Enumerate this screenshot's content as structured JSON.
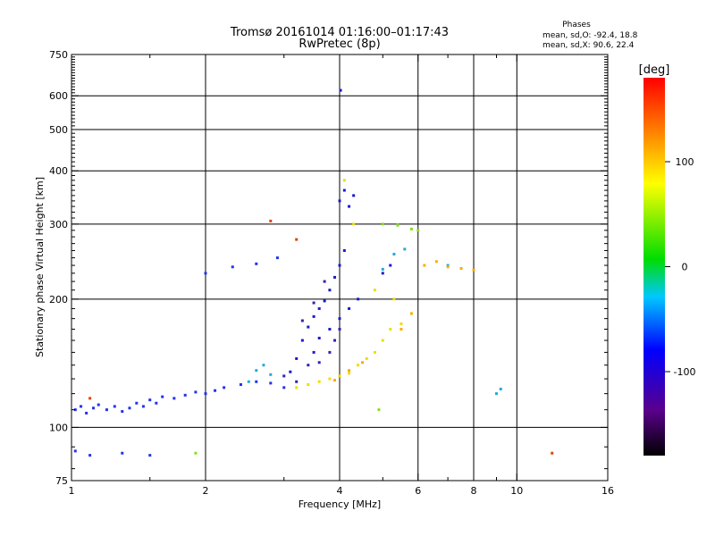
{
  "chart_data": {
    "type": "scatter",
    "title": "Tromsø 20161014 01:16:00–01:17:43",
    "subtitle": "RwPretec (8p)",
    "xlabel": "Frequency [MHz]",
    "ylabel": "Stationary phase Virtual Height [km]",
    "xscale": "log",
    "yscale": "log",
    "xlim": [
      1,
      16
    ],
    "ylim": [
      75,
      750
    ],
    "x_major_ticks": [
      {
        "v": 1,
        "label": "1"
      },
      {
        "v": 2,
        "label": "2"
      },
      {
        "v": 4,
        "label": "4"
      },
      {
        "v": 6,
        "label": "6"
      },
      {
        "v": 8,
        "label": "8"
      },
      {
        "v": 10,
        "label": "10"
      },
      {
        "v": 16,
        "label": "16"
      }
    ],
    "x_minor_ticks": [
      1.5,
      3,
      5,
      7,
      9
    ],
    "y_major_ticks": [
      {
        "v": 75,
        "label": "75"
      },
      {
        "v": 100,
        "label": "100"
      },
      {
        "v": 200,
        "label": "200"
      },
      {
        "v": 300,
        "label": "300"
      },
      {
        "v": 400,
        "label": "400"
      },
      {
        "v": 500,
        "label": "500"
      },
      {
        "v": 600,
        "label": "600"
      },
      {
        "v": 750,
        "label": "750"
      }
    ],
    "grid_x": [
      2,
      4,
      6,
      8,
      10
    ],
    "grid_y": [
      100,
      200,
      300,
      400,
      500,
      600
    ],
    "grid": true,
    "info": {
      "heading": "Phases",
      "line1": "mean, sd,O: -92.4, 18.8",
      "line2": "mean, sd,X:  90.6, 22.4"
    },
    "colorbar": {
      "label": "[deg]",
      "range": [
        -180,
        180
      ],
      "ticks": [
        {
          "v": 100,
          "label": "100"
        },
        {
          "v": 0,
          "label": "0"
        },
        {
          "v": -100,
          "label": "-100"
        }
      ]
    },
    "series": [
      {
        "color": "#2233ee",
        "points": [
          [
            1.02,
            110
          ],
          [
            1.05,
            112
          ],
          [
            1.08,
            108
          ],
          [
            1.12,
            111
          ],
          [
            1.15,
            113
          ],
          [
            1.2,
            110
          ],
          [
            1.25,
            112
          ],
          [
            1.3,
            109
          ],
          [
            1.35,
            111
          ],
          [
            1.4,
            114
          ],
          [
            1.45,
            112
          ],
          [
            1.5,
            116
          ],
          [
            1.55,
            114
          ],
          [
            1.6,
            118
          ],
          [
            1.7,
            117
          ],
          [
            1.8,
            119
          ],
          [
            1.9,
            121
          ],
          [
            2.0,
            120
          ],
          [
            2.1,
            122
          ],
          [
            2.2,
            124
          ],
          [
            2.4,
            126
          ],
          [
            2.6,
            128
          ],
          [
            2.8,
            127
          ],
          [
            3.0,
            124
          ],
          [
            1.02,
            88
          ],
          [
            1.1,
            86
          ],
          [
            1.3,
            87
          ],
          [
            1.5,
            86
          ],
          [
            2.0,
            230
          ],
          [
            2.3,
            238
          ],
          [
            2.6,
            242
          ],
          [
            2.9,
            250
          ]
        ]
      },
      {
        "color": "#1a1acc",
        "points": [
          [
            3.1,
            135
          ],
          [
            3.2,
            145
          ],
          [
            3.3,
            160
          ],
          [
            3.4,
            172
          ],
          [
            3.5,
            182
          ],
          [
            3.6,
            190
          ],
          [
            3.7,
            198
          ],
          [
            3.8,
            210
          ],
          [
            3.9,
            225
          ],
          [
            4.0,
            240
          ],
          [
            4.1,
            260
          ],
          [
            4.0,
            340
          ],
          [
            4.1,
            360
          ],
          [
            4.2,
            330
          ],
          [
            4.3,
            350
          ],
          [
            3.5,
            150
          ],
          [
            3.6,
            162
          ],
          [
            3.8,
            170
          ],
          [
            4.0,
            180
          ],
          [
            4.2,
            190
          ],
          [
            4.4,
            200
          ],
          [
            5.0,
            230
          ],
          [
            5.2,
            240
          ],
          [
            4.02,
            618
          ]
        ]
      },
      {
        "color": "#3322aa",
        "points": [
          [
            3.0,
            132
          ],
          [
            3.2,
            128
          ],
          [
            3.4,
            140
          ],
          [
            3.6,
            142
          ],
          [
            3.8,
            150
          ],
          [
            3.9,
            160
          ],
          [
            4.0,
            170
          ],
          [
            3.3,
            178
          ],
          [
            3.5,
            196
          ],
          [
            3.7,
            220
          ]
        ]
      },
      {
        "color": "#22aadd",
        "points": [
          [
            2.5,
            128
          ],
          [
            2.6,
            136
          ],
          [
            2.7,
            140
          ],
          [
            2.8,
            133
          ],
          [
            5.0,
            235
          ],
          [
            5.3,
            255
          ],
          [
            5.6,
            262
          ],
          [
            7.0,
            240
          ],
          [
            9.0,
            120
          ],
          [
            9.2,
            123
          ]
        ]
      },
      {
        "color": "#eedd00",
        "points": [
          [
            3.2,
            124
          ],
          [
            3.4,
            126
          ],
          [
            3.6,
            128
          ],
          [
            3.8,
            130
          ],
          [
            4.0,
            132
          ],
          [
            4.2,
            134
          ],
          [
            4.4,
            140
          ],
          [
            4.6,
            145
          ],
          [
            4.8,
            150
          ],
          [
            5.0,
            160
          ],
          [
            5.2,
            170
          ],
          [
            5.5,
            175
          ],
          [
            4.1,
            380
          ],
          [
            4.3,
            300
          ],
          [
            4.8,
            210
          ],
          [
            5.3,
            200
          ]
        ]
      },
      {
        "color": "#ffaa00",
        "points": [
          [
            3.9,
            129
          ],
          [
            4.2,
            136
          ],
          [
            4.5,
            142
          ],
          [
            5.5,
            170
          ],
          [
            5.8,
            185
          ],
          [
            6.2,
            240
          ],
          [
            6.6,
            245
          ],
          [
            7.0,
            238
          ],
          [
            7.5,
            236
          ],
          [
            8.0,
            234
          ]
        ]
      },
      {
        "color": "#88dd22",
        "points": [
          [
            5.0,
            300
          ],
          [
            5.4,
            298
          ],
          [
            5.8,
            292
          ],
          [
            6.0,
            290
          ],
          [
            4.9,
            110
          ],
          [
            1.9,
            87
          ]
        ]
      },
      {
        "color": "#dd4400",
        "points": [
          [
            1.1,
            117
          ],
          [
            2.8,
            305
          ],
          [
            3.2,
            276
          ],
          [
            12.0,
            87
          ]
        ]
      }
    ]
  }
}
